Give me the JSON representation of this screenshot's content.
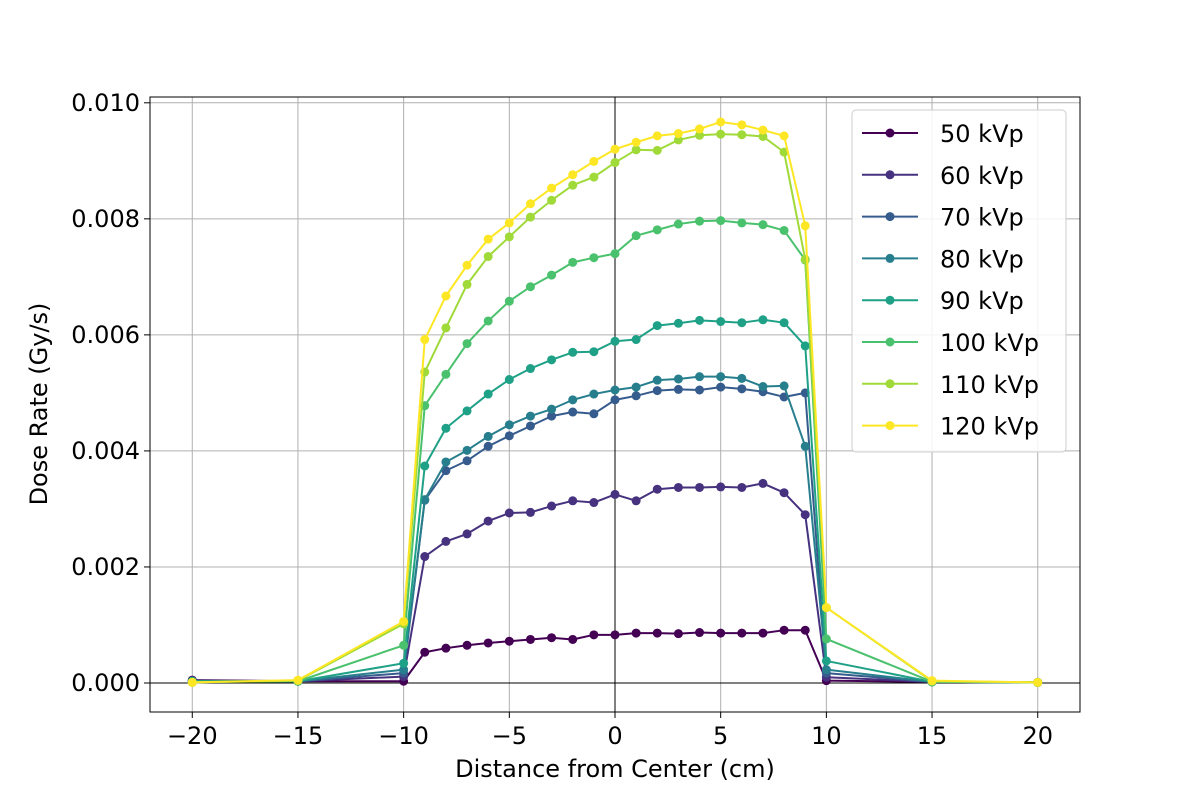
{
  "chart_data": {
    "type": "line",
    "title": "",
    "xlabel": "Distance from Center (cm)",
    "ylabel": "Dose Rate (Gy/s)",
    "xlim": [
      -22,
      22
    ],
    "ylim": [
      -0.0005,
      0.0101
    ],
    "xticks": [
      -20,
      -15,
      -10,
      -5,
      0,
      5,
      10,
      15,
      20
    ],
    "xtick_labels": [
      "−20",
      "−15",
      "−10",
      "−5",
      "0",
      "5",
      "10",
      "15",
      "20"
    ],
    "yticks": [
      0.0,
      0.002,
      0.004,
      0.006,
      0.008,
      0.01
    ],
    "ytick_labels": [
      "0.000",
      "0.002",
      "0.004",
      "0.006",
      "0.008",
      "0.010"
    ],
    "grid": true,
    "zero_lines": true,
    "legend_position": "top-right",
    "x": [
      -20,
      -15,
      -10,
      -9,
      -8,
      -7,
      -6,
      -5,
      -4,
      -3,
      -2,
      -1,
      0,
      1,
      2,
      3,
      4,
      5,
      6,
      7,
      8,
      9,
      10,
      15,
      20
    ],
    "series": [
      {
        "name": "50 kVp",
        "color": "#440154",
        "values": [
          5e-05,
          3e-05,
          3e-05,
          0.00053,
          0.0006,
          0.00065,
          0.00069,
          0.00072,
          0.00075,
          0.00078,
          0.00075,
          0.00083,
          0.00083,
          0.00086,
          0.00086,
          0.00085,
          0.00087,
          0.00086,
          0.00086,
          0.00086,
          0.00091,
          0.00091,
          4e-05,
          2e-05,
          1e-05
        ]
      },
      {
        "name": "60 kVp",
        "color": "#46327e",
        "values": [
          4e-05,
          3e-05,
          0.00011,
          0.00218,
          0.00244,
          0.00257,
          0.00279,
          0.00293,
          0.00294,
          0.00305,
          0.00314,
          0.00311,
          0.00325,
          0.00314,
          0.00334,
          0.00337,
          0.00337,
          0.00338,
          0.00337,
          0.00344,
          0.00328,
          0.0029,
          0.0001,
          2e-05,
          1e-05
        ]
      },
      {
        "name": "70 kVp",
        "color": "#365c8d",
        "values": [
          3e-05,
          3e-05,
          0.00017,
          0.00315,
          0.00366,
          0.00383,
          0.00408,
          0.00426,
          0.00443,
          0.0046,
          0.00467,
          0.00464,
          0.00488,
          0.00495,
          0.00504,
          0.00506,
          0.00505,
          0.0051,
          0.00507,
          0.00502,
          0.00493,
          0.005,
          0.00017,
          2e-05,
          1e-05
        ]
      },
      {
        "name": "80 kVp",
        "color": "#277f8e",
        "values": [
          3e-05,
          3e-05,
          0.00023,
          0.00316,
          0.00381,
          0.00401,
          0.00425,
          0.00445,
          0.0046,
          0.00472,
          0.00488,
          0.00498,
          0.00505,
          0.0051,
          0.00522,
          0.00524,
          0.00528,
          0.00528,
          0.00525,
          0.00511,
          0.00512,
          0.00408,
          0.00023,
          2e-05,
          1e-05
        ]
      },
      {
        "name": "90 kVp",
        "color": "#1fa187",
        "values": [
          3e-05,
          3e-05,
          0.00034,
          0.00374,
          0.00439,
          0.00469,
          0.00498,
          0.00523,
          0.00542,
          0.00557,
          0.0057,
          0.00571,
          0.00589,
          0.00592,
          0.00616,
          0.0062,
          0.00625,
          0.00623,
          0.00621,
          0.00626,
          0.00621,
          0.00581,
          0.00038,
          2e-05,
          1e-05
        ]
      },
      {
        "name": "100 kVp",
        "color": "#4ac16d",
        "values": [
          2e-05,
          3e-05,
          0.00065,
          0.00478,
          0.00532,
          0.00585,
          0.00624,
          0.00658,
          0.00683,
          0.00703,
          0.00725,
          0.00733,
          0.0074,
          0.00771,
          0.00781,
          0.00791,
          0.00796,
          0.00797,
          0.00793,
          0.0079,
          0.0078,
          0.00729,
          0.00076,
          2e-05,
          1e-05
        ]
      },
      {
        "name": "110 kVp",
        "color": "#a0da39",
        "values": [
          1e-05,
          4e-05,
          0.00102,
          0.00536,
          0.00612,
          0.00687,
          0.00735,
          0.00769,
          0.00803,
          0.00832,
          0.00858,
          0.00872,
          0.00897,
          0.00919,
          0.00918,
          0.00936,
          0.00944,
          0.00946,
          0.00945,
          0.00942,
          0.00915,
          0.0073,
          0.0013,
          3e-05,
          1e-05
        ]
      },
      {
        "name": "120 kVp",
        "color": "#fde725",
        "values": [
          1e-05,
          5e-05,
          0.00106,
          0.00592,
          0.00667,
          0.0072,
          0.00765,
          0.00793,
          0.00826,
          0.00853,
          0.00876,
          0.00899,
          0.0092,
          0.00932,
          0.00943,
          0.00947,
          0.00955,
          0.00967,
          0.00962,
          0.00953,
          0.00943,
          0.00788,
          0.0013,
          4e-05,
          1e-05
        ]
      }
    ]
  }
}
